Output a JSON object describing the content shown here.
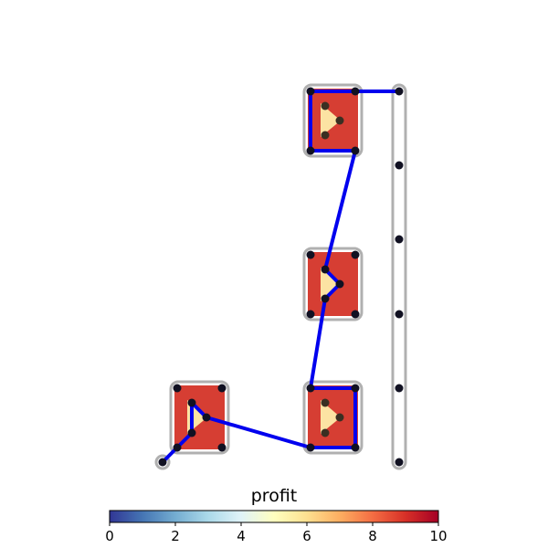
{
  "colorbar": {
    "title": "profit",
    "ticks": [
      "0",
      "2",
      "4",
      "6",
      "8",
      "10"
    ],
    "range": [
      0,
      10
    ],
    "colormap": "RdYlBu_r"
  },
  "colors": {
    "path": "#0000ee",
    "node": "#111122",
    "tile": "#d73f33",
    "triangle": "#fde6a0",
    "outline": "#999999"
  },
  "diagram": {
    "tiles": [
      {
        "id": "tile-top",
        "nodes": 4,
        "triangle": "right"
      },
      {
        "id": "tile-middle",
        "nodes": 4,
        "triangle": "right"
      },
      {
        "id": "tile-bottom-right",
        "nodes": 4,
        "triangle": "right"
      },
      {
        "id": "tile-bottom-left",
        "nodes": 4,
        "triangle": "right"
      }
    ],
    "rail_nodes": 6,
    "start_node": 1
  }
}
